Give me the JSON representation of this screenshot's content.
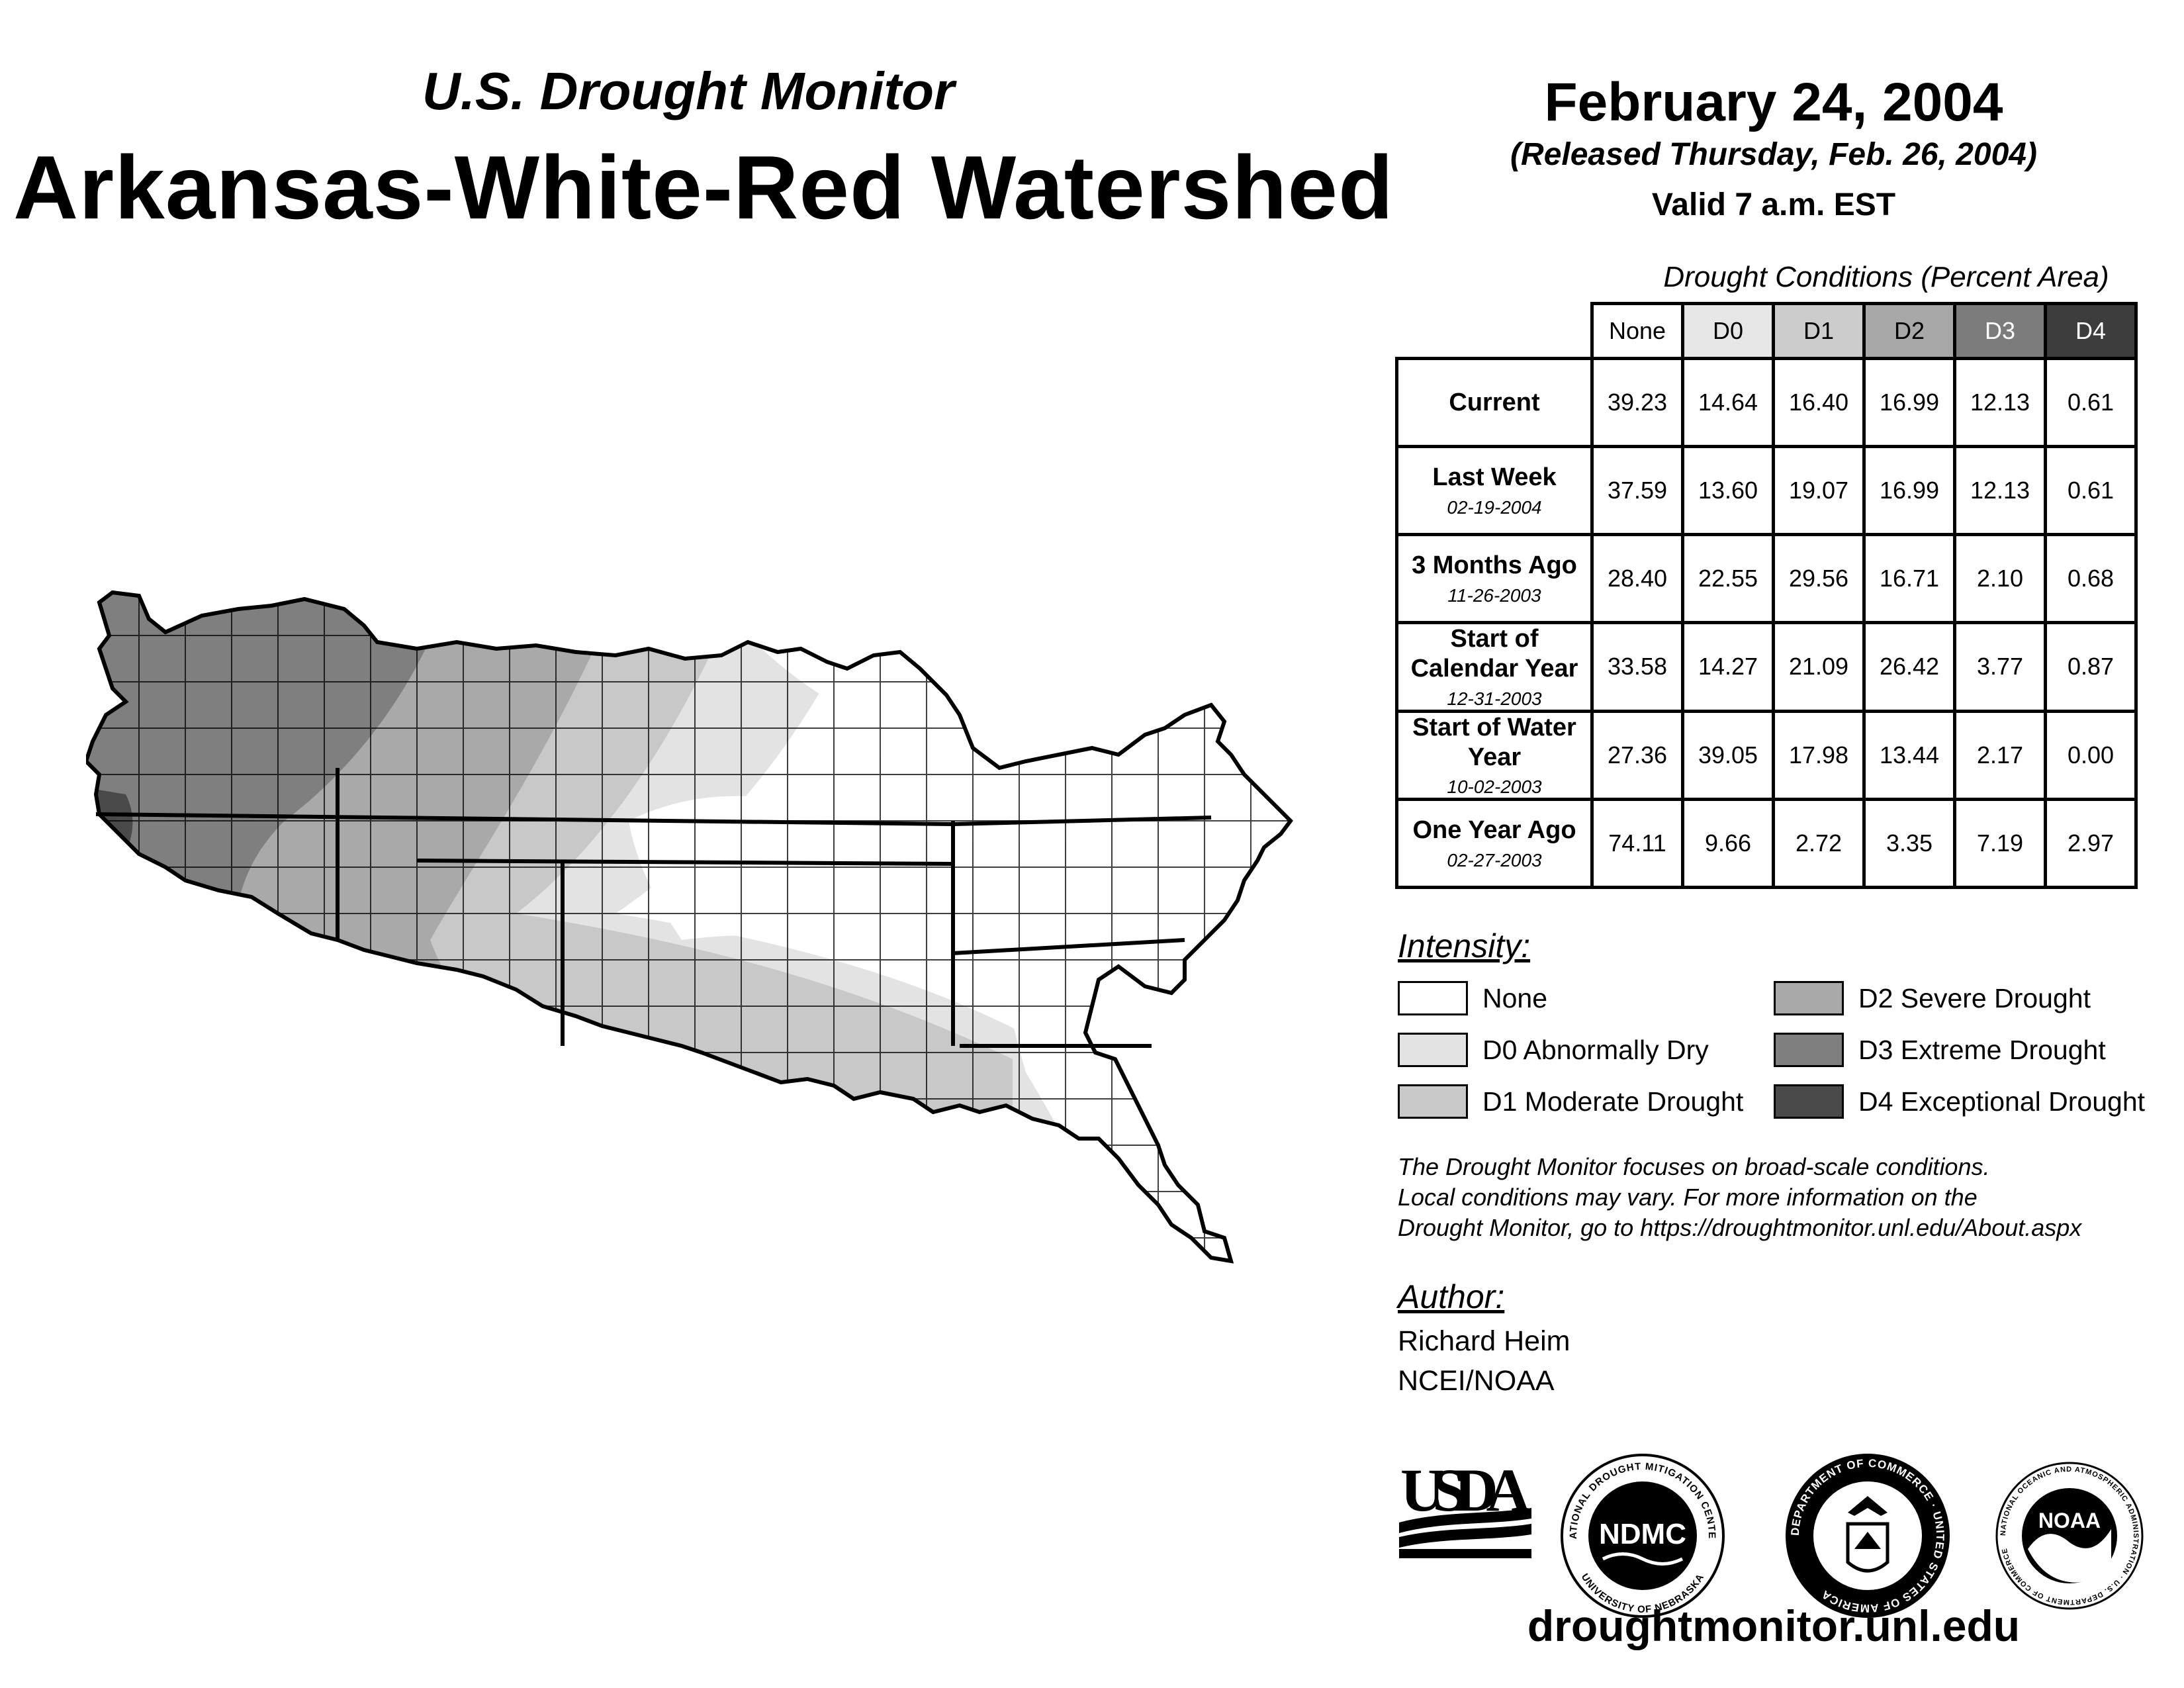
{
  "header": {
    "monitor_title": "U.S. Drought Monitor",
    "region_title": "Arkansas-White-Red Watershed",
    "date": "February 24, 2004",
    "released": "(Released Thursday, Feb. 26, 2004)",
    "valid": "Valid 7 a.m. EST"
  },
  "table": {
    "caption": "Drought Conditions (Percent Area)",
    "columns": [
      "None",
      "D0",
      "D1",
      "D2",
      "D3",
      "D4"
    ],
    "rows": [
      {
        "label": "Current",
        "date": "",
        "values": [
          "39.23",
          "14.64",
          "16.40",
          "16.99",
          "12.13",
          "0.61"
        ]
      },
      {
        "label": "Last Week",
        "date": "02-19-2004",
        "values": [
          "37.59",
          "13.60",
          "19.07",
          "16.99",
          "12.13",
          "0.61"
        ]
      },
      {
        "label": "3 Months Ago",
        "date": "11-26-2003",
        "values": [
          "28.40",
          "22.55",
          "29.56",
          "16.71",
          "2.10",
          "0.68"
        ]
      },
      {
        "label": "Start of Calendar Year",
        "date": "12-31-2003",
        "values": [
          "33.58",
          "14.27",
          "21.09",
          "26.42",
          "3.77",
          "0.87"
        ]
      },
      {
        "label": "Start of Water Year",
        "date": "10-02-2003",
        "values": [
          "27.36",
          "39.05",
          "17.98",
          "13.44",
          "2.17",
          "0.00"
        ]
      },
      {
        "label": "One Year Ago",
        "date": "02-27-2003",
        "values": [
          "74.11",
          "9.66",
          "2.72",
          "3.35",
          "7.19",
          "2.97"
        ]
      }
    ]
  },
  "legend": {
    "heading": "Intensity:",
    "items": [
      {
        "label": "None",
        "color": "#ffffff"
      },
      {
        "label": "D0 Abnormally Dry",
        "color": "#e3e3e3"
      },
      {
        "label": "D1 Moderate Drought",
        "color": "#c8c8c8"
      },
      {
        "label": "D2 Severe Drought",
        "color": "#a9a9a9"
      },
      {
        "label": "D3 Extreme Drought",
        "color": "#7f7f7f"
      },
      {
        "label": "D4 Exceptional Drought",
        "color": "#4a4a4a"
      }
    ]
  },
  "note": {
    "line1": "The Drought Monitor focuses on broad-scale conditions.",
    "line2": "Local conditions may vary. For more information on the",
    "line3": "Drought Monitor, go to https://droughtmonitor.unl.edu/About.aspx"
  },
  "author": {
    "heading": "Author:",
    "name": "Richard Heim",
    "org": "NCEI/NOAA"
  },
  "logos": {
    "usda": "USDA",
    "ndmc": "NDMC",
    "ndmc_top": "NATIONAL DROUGHT MITIGATION CENTER",
    "ndmc_bottom": "UNIVERSITY OF NEBRASKA",
    "doc": "DEPARTMENT OF COMMERCE · UNITED STATES OF AMERICA",
    "noaa": "NOAA",
    "noaa_ring": "NATIONAL OCEANIC AND ATMOSPHERIC ADMINISTRATION · U.S. DEPARTMENT OF COMMERCE"
  },
  "website": "droughtmonitor.unl.edu",
  "colors": {
    "table_none": "#ffffff",
    "table_d0": "#e6e6e6",
    "table_d1": "#cccccc",
    "table_d2": "#a8a8a8",
    "table_d3": "#7c7c7c",
    "table_d4": "#3d3d3d"
  }
}
